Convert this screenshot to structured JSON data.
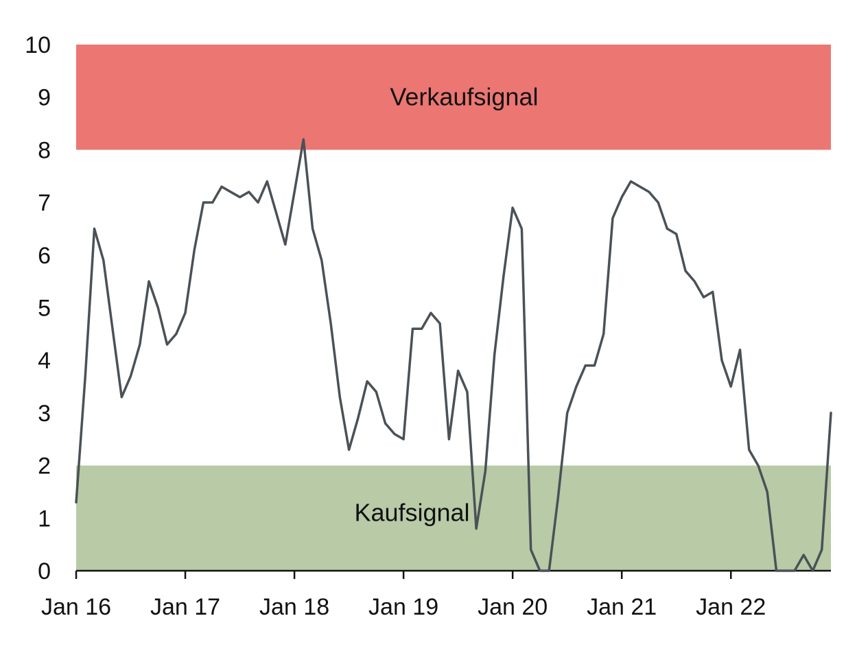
{
  "chart_data": {
    "type": "line",
    "title": "",
    "xlabel": "",
    "ylabel": "",
    "ylim": [
      0,
      10
    ],
    "grid": false,
    "y_ticks": [
      0,
      1,
      2,
      3,
      4,
      5,
      6,
      7,
      8,
      9,
      10
    ],
    "x_ticks": [
      {
        "label": "Jan 16",
        "date": "2016-01"
      },
      {
        "label": "Jan 17",
        "date": "2017-01"
      },
      {
        "label": "Jan 18",
        "date": "2018-01"
      },
      {
        "label": "Jan 19",
        "date": "2019-01"
      },
      {
        "label": "Jan 20",
        "date": "2020-01"
      },
      {
        "label": "Jan 21",
        "date": "2021-01"
      },
      {
        "label": "Jan 22",
        "date": "2022-01"
      }
    ],
    "x_range": [
      "2016-01",
      "2022-12"
    ],
    "bands": [
      {
        "label": "Verkaufsignal",
        "from": 8,
        "to": 10,
        "color": "#ec7772"
      },
      {
        "label": "Kaufsignal",
        "from": 0,
        "to": 2,
        "color": "#b8caa6"
      }
    ],
    "series": [
      {
        "color": "#4a5157",
        "points": [
          [
            "2016-01",
            1.3
          ],
          [
            "2016-02",
            3.7
          ],
          [
            "2016-03",
            6.5
          ],
          [
            "2016-04",
            5.9
          ],
          [
            "2016-05",
            4.6
          ],
          [
            "2016-06",
            3.3
          ],
          [
            "2016-07",
            3.7
          ],
          [
            "2016-08",
            4.3
          ],
          [
            "2016-09",
            5.5
          ],
          [
            "2016-10",
            5.0
          ],
          [
            "2016-11",
            4.3
          ],
          [
            "2016-12",
            4.5
          ],
          [
            "2017-01",
            4.9
          ],
          [
            "2017-02",
            6.1
          ],
          [
            "2017-03",
            7.0
          ],
          [
            "2017-04",
            7.0
          ],
          [
            "2017-05",
            7.3
          ],
          [
            "2017-06",
            7.2
          ],
          [
            "2017-07",
            7.1
          ],
          [
            "2017-08",
            7.2
          ],
          [
            "2017-09",
            7.0
          ],
          [
            "2017-10",
            7.4
          ],
          [
            "2017-11",
            6.8
          ],
          [
            "2017-12",
            6.2
          ],
          [
            "2018-01",
            7.2
          ],
          [
            "2018-02",
            8.2
          ],
          [
            "2018-03",
            6.5
          ],
          [
            "2018-04",
            5.9
          ],
          [
            "2018-05",
            4.7
          ],
          [
            "2018-06",
            3.3
          ],
          [
            "2018-07",
            2.3
          ],
          [
            "2018-08",
            2.9
          ],
          [
            "2018-09",
            3.6
          ],
          [
            "2018-10",
            3.4
          ],
          [
            "2018-11",
            2.8
          ],
          [
            "2018-12",
            2.6
          ],
          [
            "2019-01",
            2.5
          ],
          [
            "2019-02",
            4.6
          ],
          [
            "2019-03",
            4.6
          ],
          [
            "2019-04",
            4.9
          ],
          [
            "2019-05",
            4.7
          ],
          [
            "2019-06",
            2.5
          ],
          [
            "2019-07",
            3.8
          ],
          [
            "2019-08",
            3.4
          ],
          [
            "2019-09",
            0.8
          ],
          [
            "2019-10",
            1.9
          ],
          [
            "2019-11",
            4.1
          ],
          [
            "2019-12",
            5.6
          ],
          [
            "2020-01",
            6.9
          ],
          [
            "2020-02",
            6.5
          ],
          [
            "2020-03",
            0.4
          ],
          [
            "2020-04",
            0.0
          ],
          [
            "2020-05",
            0.0
          ],
          [
            "2020-06",
            1.4
          ],
          [
            "2020-07",
            3.0
          ],
          [
            "2020-08",
            3.5
          ],
          [
            "2020-09",
            3.9
          ],
          [
            "2020-10",
            3.9
          ],
          [
            "2020-11",
            4.5
          ],
          [
            "2020-12",
            6.7
          ],
          [
            "2021-01",
            7.1
          ],
          [
            "2021-02",
            7.4
          ],
          [
            "2021-03",
            7.3
          ],
          [
            "2021-04",
            7.2
          ],
          [
            "2021-05",
            7.0
          ],
          [
            "2021-06",
            6.5
          ],
          [
            "2021-07",
            6.4
          ],
          [
            "2021-08",
            5.7
          ],
          [
            "2021-09",
            5.5
          ],
          [
            "2021-10",
            5.2
          ],
          [
            "2021-11",
            5.3
          ],
          [
            "2021-12",
            4.0
          ],
          [
            "2022-01",
            3.5
          ],
          [
            "2022-02",
            4.2
          ],
          [
            "2022-03",
            2.3
          ],
          [
            "2022-04",
            2.0
          ],
          [
            "2022-05",
            1.5
          ],
          [
            "2022-06",
            0.0
          ],
          [
            "2022-07",
            0.0
          ],
          [
            "2022-08",
            0.0
          ],
          [
            "2022-09",
            0.3
          ],
          [
            "2022-10",
            0.0
          ],
          [
            "2022-11",
            0.4
          ],
          [
            "2022-12",
            3.0
          ]
        ]
      }
    ]
  }
}
